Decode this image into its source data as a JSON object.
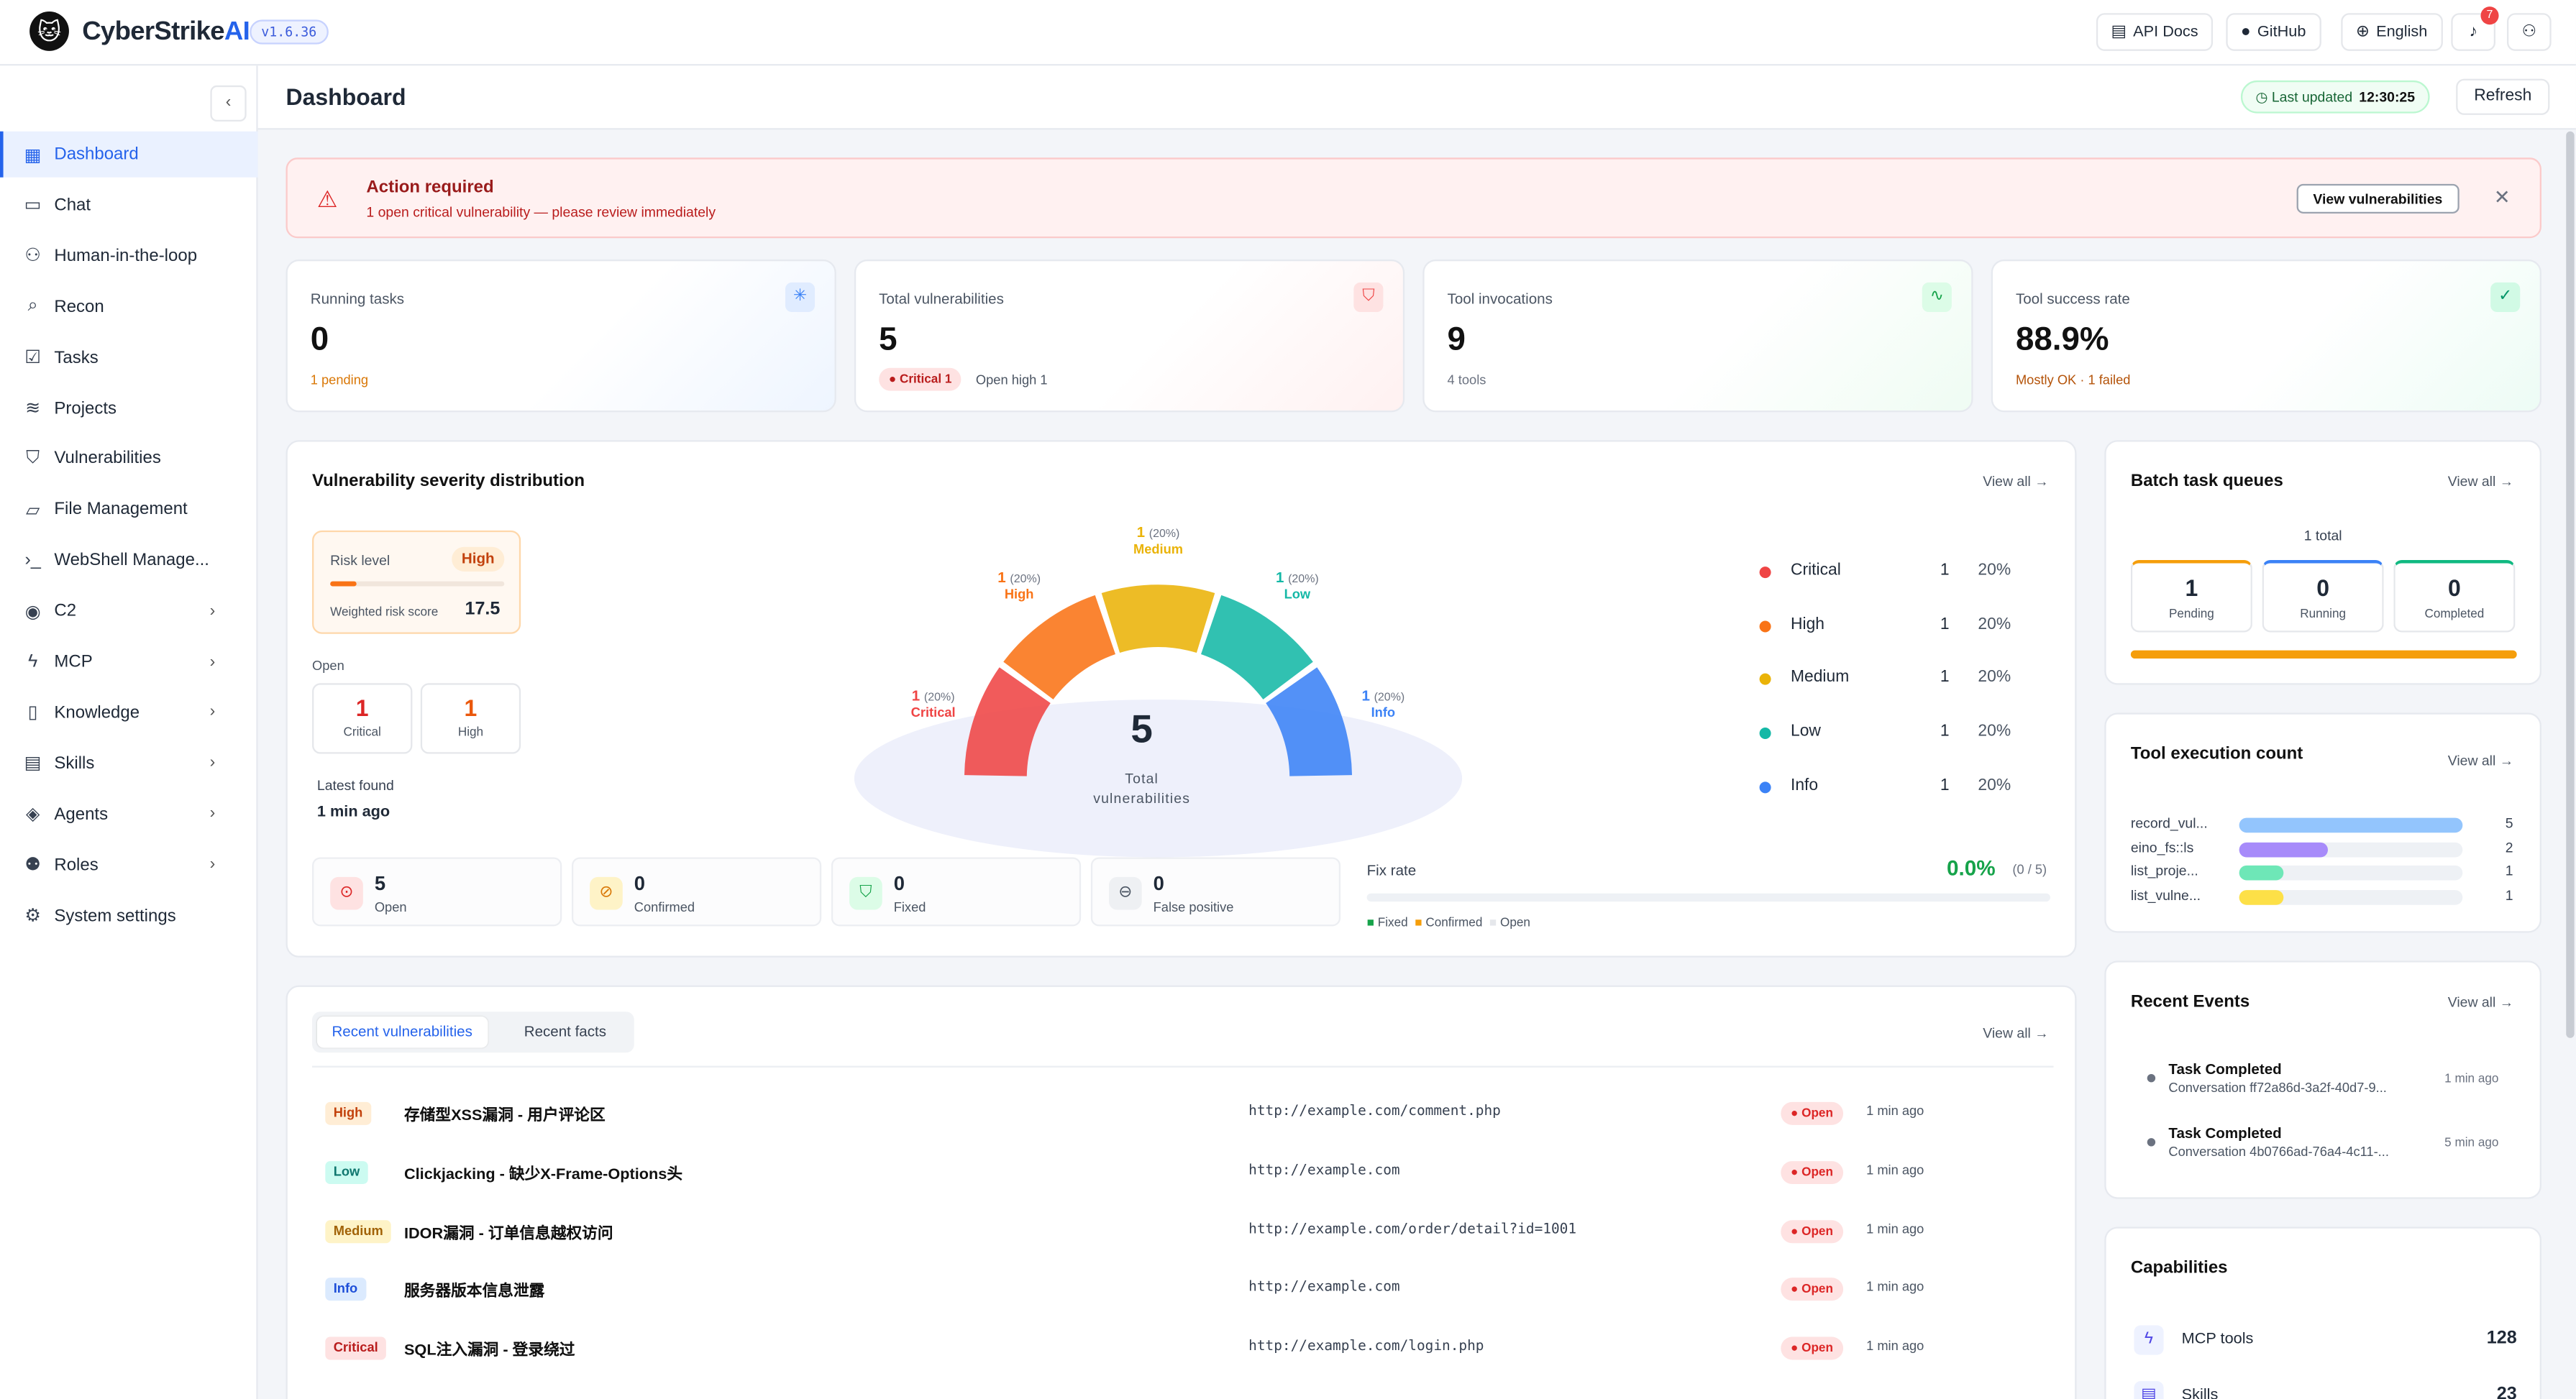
{
  "app": {
    "name_a": "CyberStrike",
    "name_b": "AI",
    "version": "v1.6.36"
  },
  "topbar": {
    "api_docs": "API Docs",
    "github": "GitHub",
    "language": "English",
    "notif_count": "7"
  },
  "sidebar": {
    "items": [
      {
        "label": "Dashboard",
        "icon": "grid-icon"
      },
      {
        "label": "Chat",
        "icon": "chat-icon"
      },
      {
        "label": "Human-in-the-loop",
        "icon": "person-icon"
      },
      {
        "label": "Recon",
        "icon": "search-icon"
      },
      {
        "label": "Tasks",
        "icon": "checkbox-icon"
      },
      {
        "label": "Projects",
        "icon": "layers-icon"
      },
      {
        "label": "Vulnerabilities",
        "icon": "shield-icon"
      },
      {
        "label": "File Management",
        "icon": "folder-icon"
      },
      {
        "label": "WebShell Manage...",
        "icon": "terminal-icon"
      },
      {
        "label": "C2",
        "icon": "broadcast-icon"
      },
      {
        "label": "MCP",
        "icon": "bolt-icon"
      },
      {
        "label": "Knowledge",
        "icon": "book-icon"
      },
      {
        "label": "Skills",
        "icon": "document-icon"
      },
      {
        "label": "Agents",
        "icon": "stack-icon"
      },
      {
        "label": "Roles",
        "icon": "users-icon"
      },
      {
        "label": "System settings",
        "icon": "gear-icon"
      }
    ]
  },
  "page": {
    "title": "Dashboard",
    "last_updated_label": "Last updated",
    "last_updated_time": "12:30:25",
    "refresh": "Refresh"
  },
  "alert": {
    "title": "Action required",
    "message": "1 open critical vulnerability — please review immediately",
    "button": "View vulnerabilities"
  },
  "stats": {
    "running": {
      "label": "Running tasks",
      "value": "0",
      "sub": "1 pending"
    },
    "vulns": {
      "label": "Total vulnerabilities",
      "value": "5",
      "critical_badge": "Critical 1",
      "open_high": "Open high 1"
    },
    "tools": {
      "label": "Tool invocations",
      "value": "9",
      "sub": "4 tools"
    },
    "success": {
      "label": "Tool success rate",
      "value": "88.9%",
      "sub": "Mostly OK · 1 failed"
    }
  },
  "severity": {
    "title": "Vulnerability severity distribution",
    "view_all": "View all →",
    "risk_level_label": "Risk level",
    "risk_level": "High",
    "risk_fill": 0.15,
    "weighted_label": "Weighted risk score",
    "weighted_score": "17.5",
    "open_label": "Open",
    "open_critical": "1",
    "open_critical_label": "Critical",
    "open_high": "1",
    "open_high_label": "High",
    "latest_label": "Latest found",
    "latest_value": "1 min ago",
    "total": "5",
    "total_label_1": "Total",
    "total_label_2": "vulnerabilities",
    "summary": [
      {
        "value": "5",
        "label": "Open"
      },
      {
        "value": "0",
        "label": "Confirmed"
      },
      {
        "value": "0",
        "label": "Fixed"
      },
      {
        "value": "0",
        "label": "False positive"
      }
    ],
    "fix_rate_label": "Fix rate",
    "fix_rate": "0.0%",
    "fix_rate_detail": "(0 / 5)",
    "fix_legend": [
      "Fixed",
      "Confirmed",
      "Open"
    ]
  },
  "chart_data": {
    "type": "pie",
    "categories": [
      "Critical",
      "High",
      "Medium",
      "Low",
      "Info"
    ],
    "values": [
      1,
      1,
      1,
      1,
      1
    ],
    "percents": [
      "20%",
      "20%",
      "20%",
      "20%",
      "20%"
    ],
    "colors": [
      "#ef4444",
      "#f97316",
      "#eab308",
      "#14b8a6",
      "#3b82f6"
    ],
    "legend": "right"
  },
  "batch": {
    "title": "Batch task queues",
    "view_all": "View all →",
    "total": "1 total",
    "queues": [
      {
        "value": "1",
        "label": "Pending",
        "color": "#f59e0b"
      },
      {
        "value": "0",
        "label": "Running",
        "color": "#3b82f6"
      },
      {
        "value": "0",
        "label": "Completed",
        "color": "#10b981"
      }
    ]
  },
  "tool_exec": {
    "title": "Tool execution count",
    "view_all": "View all →",
    "rows": [
      {
        "name": "record_vul...",
        "value": 5,
        "color": "#93c5fd"
      },
      {
        "name": "eino_fs::ls",
        "value": 2,
        "color": "#a78bfa"
      },
      {
        "name": "list_proje...",
        "value": 1,
        "color": "#6ee7b7"
      },
      {
        "name": "list_vulne...",
        "value": 1,
        "color": "#fde047"
      }
    ]
  },
  "events": {
    "title": "Recent Events",
    "view_all": "View all →",
    "items": [
      {
        "title": "Task Completed",
        "sub": "Conversation ff72a86d-3a2f-40d7-9...",
        "time": "1 min ago"
      },
      {
        "title": "Task Completed",
        "sub": "Conversation 4b0766ad-76a4-4c11-...",
        "time": "5 min ago"
      }
    ]
  },
  "recent": {
    "tab_vulns": "Recent vulnerabilities",
    "tab_facts": "Recent facts",
    "view_all": "View all →",
    "rows": [
      {
        "severity": "High",
        "title": "存储型XSS漏洞 - 用户评论区",
        "url": "http://example.com/comment.php",
        "status": "Open",
        "time": "1 min ago"
      },
      {
        "severity": "Low",
        "title": "Clickjacking - 缺少X-Frame-Options头",
        "url": "http://example.com",
        "status": "Open",
        "time": "1 min ago"
      },
      {
        "severity": "Medium",
        "title": "IDOR漏洞 - 订单信息越权访问",
        "url": "http://example.com/order/detail?id=1001",
        "status": "Open",
        "time": "1 min ago"
      },
      {
        "severity": "Info",
        "title": "服务器版本信息泄露",
        "url": "http://example.com",
        "status": "Open",
        "time": "1 min ago"
      },
      {
        "severity": "Critical",
        "title": "SQL注入漏洞 - 登录绕过",
        "url": "http://example.com/login.php",
        "status": "Open",
        "time": "1 min ago"
      }
    ]
  },
  "capabilities": {
    "title": "Capabilities",
    "items": [
      {
        "label": "MCP tools",
        "value": "128"
      },
      {
        "label": "Skills",
        "value": "23"
      }
    ]
  }
}
